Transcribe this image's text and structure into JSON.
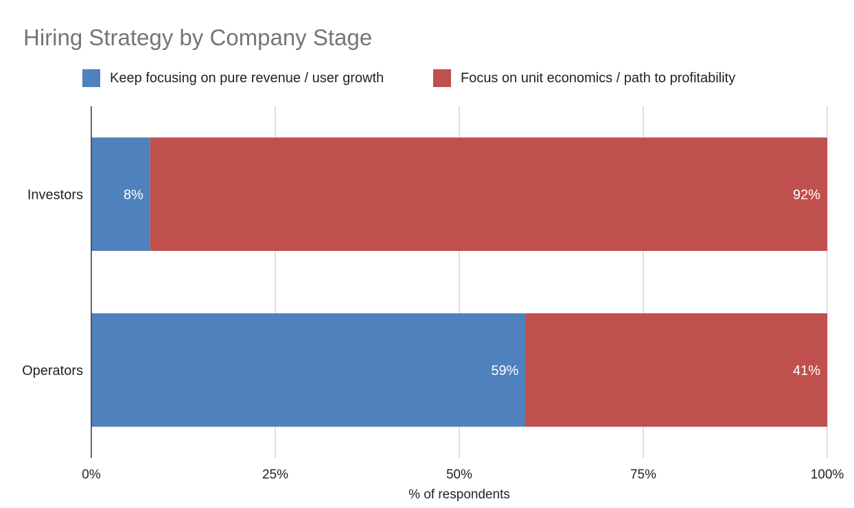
{
  "chart_data": {
    "type": "bar",
    "orientation": "horizontal",
    "stacked": true,
    "title": "Hiring Strategy by Company Stage",
    "xlabel": "% of respondents",
    "ylabel": "",
    "categories": [
      "Investors",
      "Operators"
    ],
    "series": [
      {
        "name": "Keep focusing on pure revenue / user growth",
        "color": "#4f81bd",
        "values": [
          8,
          59
        ],
        "labels": [
          "8%",
          "59%"
        ]
      },
      {
        "name": "Focus on unit economics / path to profitability",
        "color": "#c0504d",
        "values": [
          92,
          41
        ],
        "labels": [
          "92%",
          "41%"
        ]
      }
    ],
    "xlim": [
      0,
      100
    ],
    "x_ticks": [
      "0%",
      "25%",
      "50%",
      "75%",
      "100%"
    ],
    "grid": true,
    "legend_position": "top-left"
  }
}
